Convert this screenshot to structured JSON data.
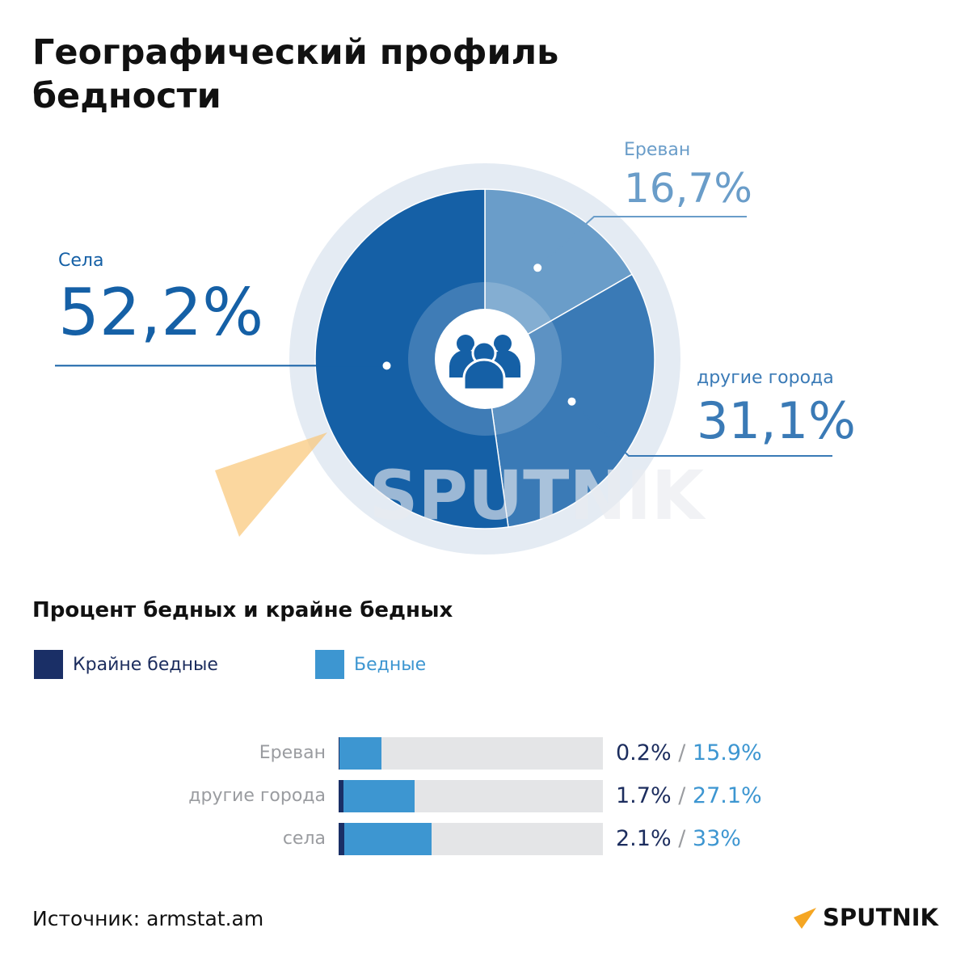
{
  "title_line1": "Географический профиль",
  "title_line2": "бедности",
  "chart_data": [
    {
      "type": "pie",
      "categories": [
        "Села",
        "Ереван",
        "другие города"
      ],
      "values": [
        52.2,
        16.7,
        31.1
      ],
      "labels": [
        "52,2%",
        "16,7%",
        "31,1%"
      ],
      "colors": [
        "#1560a6",
        "#6a9dc9",
        "#3a7ab6"
      ],
      "title": "Географический профиль бедности"
    },
    {
      "type": "bar",
      "orientation": "horizontal",
      "stacked": true,
      "title": "Процент бедных и крайне бедных",
      "categories": [
        "Ереван",
        "другие города",
        "села"
      ],
      "series": [
        {
          "name": "Крайне бедные",
          "values": [
            0.2,
            1.7,
            2.1
          ],
          "labels": [
            "0.2%",
            "1.7%",
            "2.1%"
          ],
          "color": "#1a2f66"
        },
        {
          "name": "Бедные",
          "values": [
            15.9,
            27.1,
            33
          ],
          "labels": [
            "15.9%",
            "27.1%",
            "33%"
          ],
          "color": "#3d96d1"
        }
      ],
      "xlim": [
        0,
        100
      ],
      "legend": "top-left"
    }
  ],
  "separator": "/",
  "source": "Источник: armstat.am",
  "logo_text": "SPUTNIK",
  "watermark": "SPUTNIK"
}
